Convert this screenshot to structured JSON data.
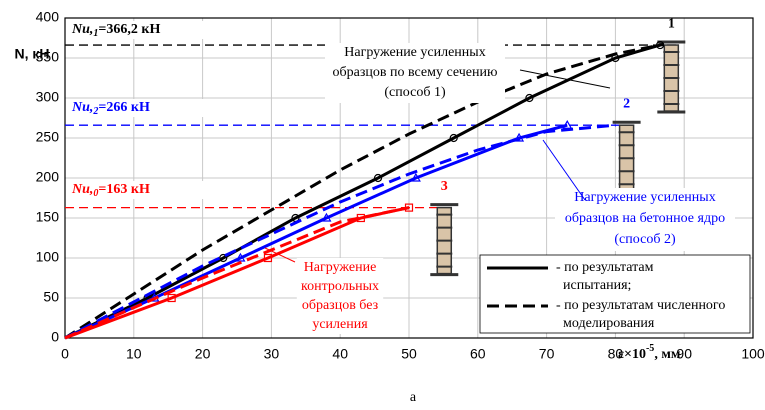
{
  "chart_data": {
    "type": "line",
    "y_label": "N, кН",
    "x_label": {
      "main": "ε×10",
      "sup": "-5",
      "rest": ", мм"
    },
    "caption": "а",
    "xlim": [
      0,
      100
    ],
    "ylim": [
      0,
      400
    ],
    "xticks": [
      0,
      10,
      20,
      30,
      40,
      50,
      60,
      70,
      80,
      90,
      100
    ],
    "yticks": [
      0,
      50,
      100,
      150,
      200,
      250,
      300,
      350,
      400
    ],
    "grid": true,
    "series": [
      {
        "color": "#000000",
        "dashed": false,
        "marker": "circle",
        "x": [
          0,
          12,
          23,
          33.5,
          45.5,
          56.5,
          67.5,
          80,
          86.5
        ],
        "values": [
          0,
          50,
          100,
          150,
          200,
          250,
          300,
          350,
          366.2
        ]
      },
      {
        "color": "#000000",
        "dashed": true,
        "marker": null,
        "x": [
          0,
          10,
          20,
          30,
          40,
          50,
          60,
          70,
          80,
          87
        ],
        "values": [
          0,
          55,
          110,
          160,
          210,
          255,
          295,
          330,
          355,
          367
        ]
      },
      {
        "color": "#0000ff",
        "dashed": false,
        "marker": "triangle",
        "x": [
          0,
          13,
          25.5,
          38,
          51,
          66,
          73
        ],
        "values": [
          0,
          50,
          100,
          150,
          200,
          250,
          266
        ]
      },
      {
        "color": "#0000ff",
        "dashed": true,
        "marker": null,
        "x": [
          0,
          10,
          20,
          30,
          40,
          50,
          60,
          70,
          80
        ],
        "values": [
          0,
          45,
          90,
          130,
          170,
          205,
          235,
          258,
          266
        ]
      },
      {
        "color": "#ff0000",
        "dashed": false,
        "marker": "square",
        "x": [
          0,
          15.5,
          29.5,
          43,
          50
        ],
        "values": [
          0,
          50,
          100,
          150,
          163
        ]
      },
      {
        "color": "#ff0000",
        "dashed": true,
        "marker": null,
        "x": [
          0,
          10,
          20,
          30,
          40,
          50
        ],
        "values": [
          0,
          38,
          75,
          110,
          145,
          163
        ]
      }
    ],
    "limits": [
      {
        "value": 366.2,
        "color": "#000000",
        "italic": "Nu,",
        "sub": "1",
        "rest": "=366,2 кН",
        "number": "1"
      },
      {
        "value": 266,
        "color": "#0000ff",
        "italic": "Nu,",
        "sub": "2",
        "rest": "=266 кН",
        "number": "2"
      },
      {
        "value": 163,
        "color": "#ff0000",
        "italic": "Nu,",
        "sub": "0",
        "rest": "=163 кН",
        "number": "3"
      }
    ],
    "annotations": [
      {
        "color": "#000000",
        "lines": [
          "Нагружение усиленных",
          "образцов по всему сечению",
          "(способ 1)"
        ]
      },
      {
        "color": "#0000ff",
        "lines": [
          "Нагружение усиленных",
          "образцов на бетонное ядро",
          "(способ 2)"
        ]
      },
      {
        "color": "#ff0000",
        "lines": [
          "Нагружение",
          "контрольных",
          "образцов без",
          "усиления"
        ]
      }
    ],
    "legend": [
      {
        "dashed": false,
        "lines": [
          "- по результатам",
          "испытания;"
        ]
      },
      {
        "dashed": true,
        "lines": [
          "- по результатам численного",
          "моделирования"
        ]
      }
    ]
  }
}
